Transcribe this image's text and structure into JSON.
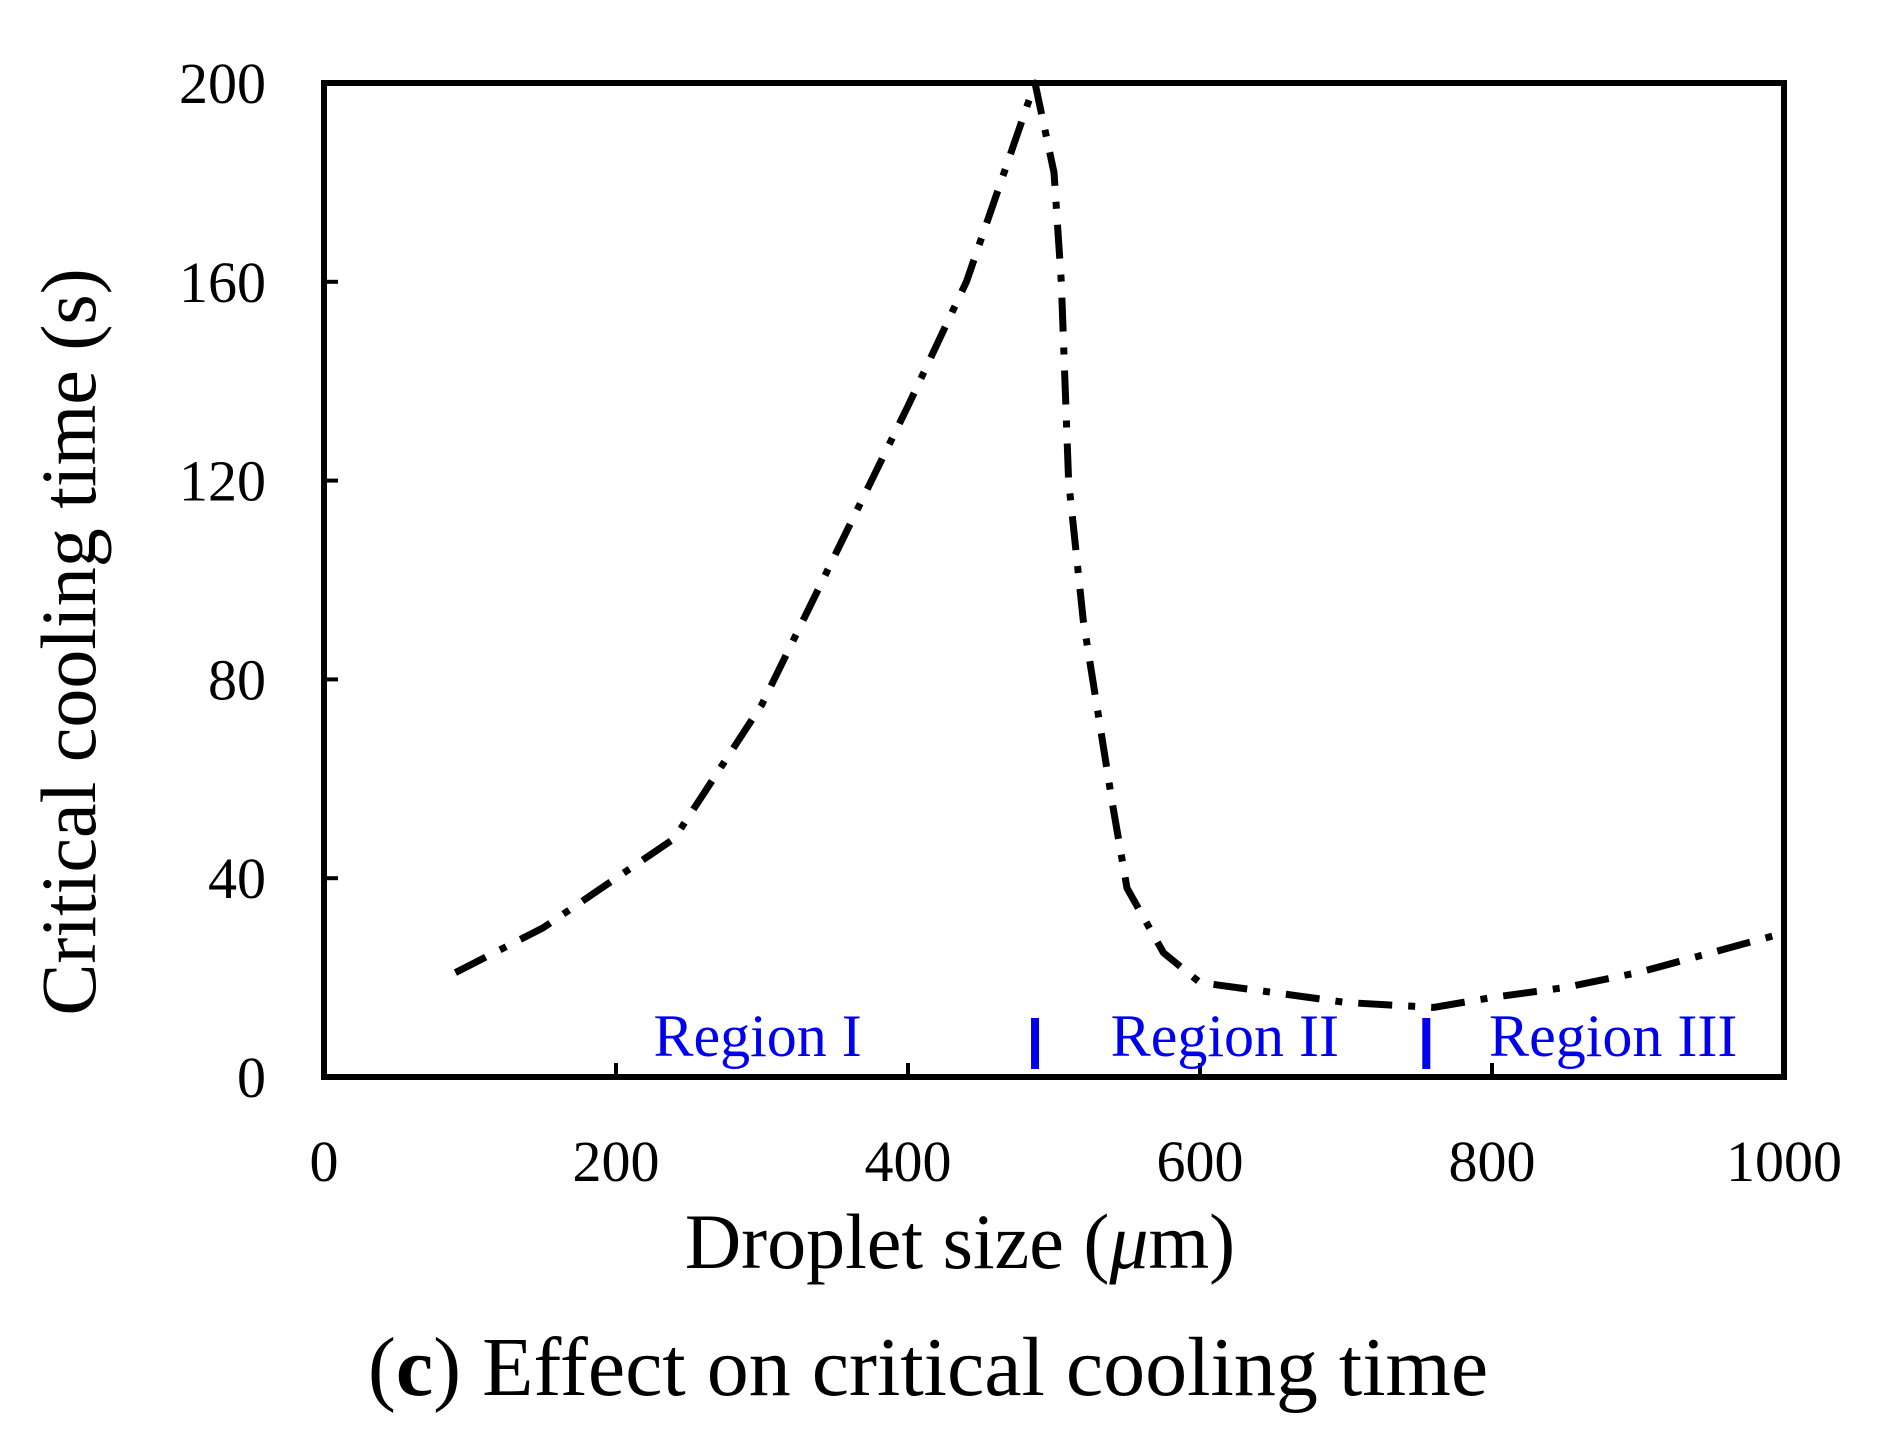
{
  "chart_data": {
    "type": "line",
    "title": "",
    "xlabel": "Droplet size (μm)",
    "xlabel_prefix": "Droplet size (",
    "xlabel_unit": "μ",
    "xlabel_suffix": "m)",
    "ylabel": "Critical cooling time (s)",
    "xlim": [
      0,
      1000
    ],
    "ylim": [
      0,
      200
    ],
    "xticks": [
      0,
      200,
      400,
      600,
      800,
      1000
    ],
    "yticks": [
      0,
      40,
      80,
      120,
      160,
      200
    ],
    "grid": false,
    "series": [
      {
        "name": "Critical cooling time",
        "style": "dash-dot",
        "color": "#000000",
        "x": [
          90,
          150,
          200,
          240,
          300,
          350,
          400,
          440,
          487,
          500,
          505,
          510,
          520,
          540,
          550,
          575,
          600,
          650,
          700,
          760,
          800,
          850,
          900,
          950,
          1000
        ],
        "y": [
          21,
          30,
          40,
          48,
          75,
          105,
          135,
          160,
          200,
          182,
          160,
          120,
          92,
          55,
          38,
          25,
          19,
          17,
          15,
          14,
          16,
          18,
          21,
          25,
          29
        ]
      }
    ],
    "region_boundaries": [
      487,
      755
    ],
    "regions": [
      {
        "label": "Region I",
        "x_center": 297
      },
      {
        "label": "Region II",
        "x_center": 617
      },
      {
        "label": "Region III",
        "x_center": 883
      }
    ],
    "region_color": "#0000ee"
  },
  "caption": {
    "open_paren": "(",
    "letter": "c",
    "rest": ") Effect on critical cooling time"
  }
}
